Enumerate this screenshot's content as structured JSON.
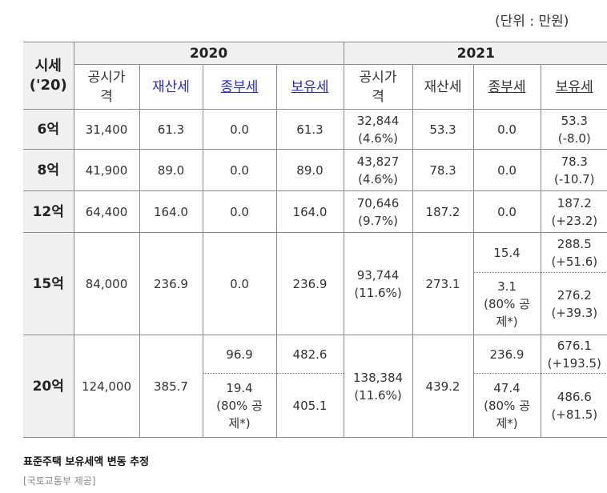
{
  "unit_label": "(단위 : 만원)",
  "header": {
    "sise_line1": "시세",
    "sise_line2": "('20)",
    "year_2020": "2020",
    "year_2021": "2021",
    "cols": {
      "gongsi_line1": "공시가",
      "gongsi_line2": "격",
      "jaesan": "재산세",
      "jongbu": "종부세",
      "boyu": "보유세"
    }
  },
  "rows": {
    "r6": {
      "label": "6억",
      "g2020": "31,400",
      "j2020": "61.3",
      "jb2020": "0.0",
      "b2020": "61.3",
      "g2021a": "32,844",
      "g2021b": "(4.6%)",
      "j2021": "53.3",
      "jb2021": "0.0",
      "b2021a": "53.3",
      "b2021b": "(-8.0)"
    },
    "r8": {
      "label": "8억",
      "g2020": "41,900",
      "j2020": "89.0",
      "jb2020": "0.0",
      "b2020": "89.0",
      "g2021a": "43,827",
      "g2021b": "(4.6%)",
      "j2021": "78.3",
      "jb2021": "0.0",
      "b2021a": "78.3",
      "b2021b": "(-10.7)"
    },
    "r12": {
      "label": "12억",
      "g2020": "64,400",
      "j2020": "164.0",
      "jb2020": "0.0",
      "b2020": "164.0",
      "g2021a": "70,646",
      "g2021b": "(9.7%)",
      "j2021": "187.2",
      "jb2021": "0.0",
      "b2021a": "187.2",
      "b2021b": "(+23.2)"
    },
    "r15": {
      "label": "15억",
      "g2020": "84,000",
      "j2020": "236.9",
      "jb2020": "0.0",
      "b2020": "236.9",
      "g2021a": "93,744",
      "g2021b": "(11.6%)",
      "j2021": "273.1",
      "jb2021_top": "15.4",
      "b2021_top_a": "288.5",
      "b2021_top_b": "(+51.6)",
      "jb2021_bot_a": "3.1",
      "jb2021_bot_b": "(80% 공",
      "jb2021_bot_c": "제*)",
      "b2021_bot_a": "276.2",
      "b2021_bot_b": "(+39.3)"
    },
    "r20": {
      "label": "20억",
      "g2020": "124,000",
      "j2020": "385.7",
      "jb2020_top": "96.9",
      "b2020_top": "482.6",
      "jb2020_bot_a": "19.4",
      "jb2020_bot_b": "(80% 공",
      "jb2020_bot_c": "제*)",
      "b2020_bot": "405.1",
      "g2021a": "138,384",
      "g2021b": "(11.6%)",
      "j2021": "439.2",
      "jb2021_top": "236.9",
      "b2021_top_a": "676.1",
      "b2021_top_b": "(+193.5)",
      "jb2021_bot_a": "47.4",
      "jb2021_bot_b": "(80% 공",
      "jb2021_bot_c": "제*)",
      "b2021_bot_a": "486.6",
      "b2021_bot_b": "(+81.5)"
    }
  },
  "caption": "표준주택 보유세액 변동 추정",
  "source": "[국토교통부 제공]"
}
